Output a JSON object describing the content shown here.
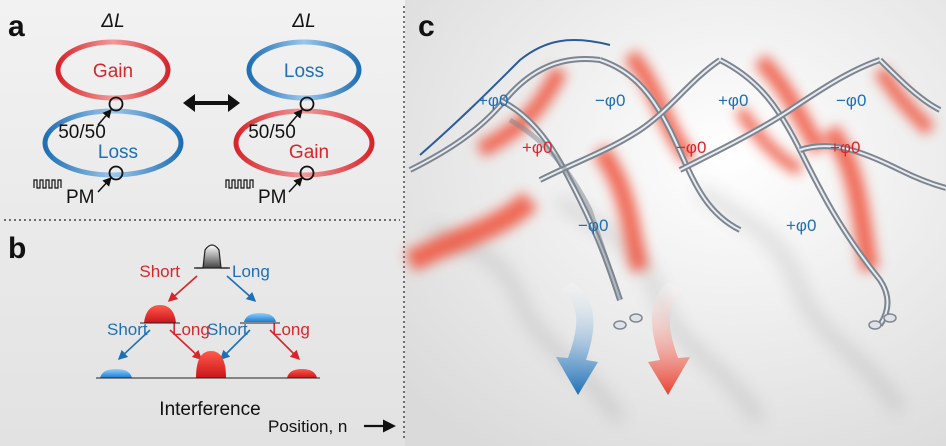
{
  "panel_a": {
    "letter": "a",
    "left": {
      "delta": "ΔL",
      "top_ring": "Gain",
      "bottom_ring": "Loss",
      "coupler": "50/50",
      "modulator": "PM"
    },
    "right": {
      "delta": "ΔL",
      "top_ring": "Loss",
      "bottom_ring": "Gain",
      "coupler": "50/50",
      "modulator": "PM"
    },
    "swap_symbol": "⟷"
  },
  "panel_b": {
    "letter": "b",
    "top_short": "Short",
    "top_long": "Long",
    "left_short": "Short",
    "left_long": "Long",
    "right_short": "Short",
    "right_long": "Long",
    "interference": "Interference",
    "position_axis": "Position, n"
  },
  "panel_c": {
    "letter": "c",
    "phases": [
      "+φ0",
      "−φ0",
      "+φ0",
      "−φ0",
      "+φ0",
      "−φ0",
      "+φ0",
      "−φ0",
      "+φ0"
    ]
  },
  "colors": {
    "gain_red": "#d7262b",
    "loss_blue": "#1e6fb4",
    "text_dark": "#111111",
    "background": "#ececec"
  }
}
